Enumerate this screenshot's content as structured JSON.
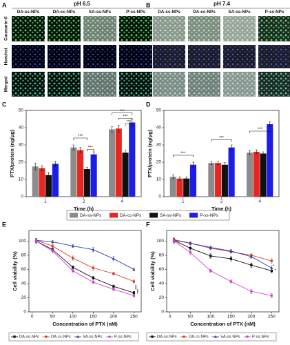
{
  "figure": {
    "panel_a": {
      "label": "A",
      "title": "pH 6.5",
      "columns": [
        "DA-ss-NPs",
        "DA-cc-NPs",
        "SA-ss-NPs",
        "P-ss-NPs"
      ],
      "rows": [
        "Coumarin-6",
        "Hoechst",
        "Merged"
      ]
    },
    "panel_b": {
      "label": "B",
      "title": "pH 7.4",
      "columns": [
        "DA-ss-NPs",
        "DA-cc-NPs",
        "SA-ss-NPs",
        "P-ss-NPs"
      ]
    }
  },
  "chart_data": [
    {
      "type": "bar",
      "label": "C",
      "xlabel": "Time (h)",
      "ylabel": "PTX/protein (ng/μg)",
      "categories": [
        "1",
        "2",
        "4"
      ],
      "ylim": [
        0,
        50
      ],
      "yticks": [
        0,
        10,
        20,
        30,
        40,
        50
      ],
      "series": [
        {
          "name": "DA-ss-NPs",
          "color": "#8c8c8c",
          "values": [
            17.5,
            28.5,
            39
          ],
          "errors": [
            2,
            1.5,
            1.5
          ]
        },
        {
          "name": "DA-cc-NPs",
          "color": "#e8261f",
          "values": [
            16.5,
            27,
            39.5
          ],
          "errors": [
            1.5,
            1.5,
            2
          ]
        },
        {
          "name": "SA-ss-NPs",
          "color": "#111111",
          "values": [
            12.5,
            16,
            25.5
          ],
          "errors": [
            1.5,
            1,
            1.5
          ]
        },
        {
          "name": "P-ss-NPs",
          "color": "#1d1de8",
          "values": [
            19,
            24.5,
            43
          ],
          "errors": [
            1.5,
            1.5,
            2
          ]
        }
      ],
      "annotations": [
        "***",
        "***",
        "***",
        "***",
        "***"
      ]
    },
    {
      "type": "bar",
      "label": "D",
      "xlabel": "Time (h)",
      "ylabel": "PTX/protein (ng/μg)",
      "categories": [
        "1",
        "2",
        "4"
      ],
      "ylim": [
        0,
        50
      ],
      "yticks": [
        0,
        10,
        20,
        30,
        40,
        50
      ],
      "series": [
        {
          "color": "#8c8c8c",
          "values": [
            11.5,
            19.5,
            25.5
          ],
          "errors": [
            1.2,
            1,
            1.2
          ]
        },
        {
          "color": "#e8261f",
          "values": [
            10.5,
            19.5,
            26
          ],
          "errors": [
            1,
            1,
            1.2
          ]
        },
        {
          "color": "#111111",
          "values": [
            10.5,
            18.5,
            25
          ],
          "errors": [
            1,
            1.2,
            1
          ]
        },
        {
          "color": "#1d1de8",
          "values": [
            18.5,
            28.5,
            42
          ],
          "errors": [
            1.5,
            1.5,
            1.5
          ]
        }
      ],
      "annotations": [
        "***",
        "***",
        "***"
      ]
    },
    {
      "type": "line",
      "label": "E",
      "xlabel": "Concentration of PTX (nM)",
      "ylabel": "Cell viability (%)",
      "x": [
        10,
        50,
        100,
        150,
        200,
        250
      ],
      "xlim": [
        -8,
        268
      ],
      "xticks": [
        0,
        50,
        100,
        150,
        200,
        250
      ],
      "ylim": [
        0,
        115
      ],
      "yticks": [
        0,
        20,
        40,
        60,
        80,
        100
      ],
      "series": [
        {
          "name": "DA-ss-NPs",
          "color": "#111111",
          "marker": "square",
          "values": [
            100,
            88,
            63,
            48,
            36,
            27
          ],
          "errors": [
            3,
            2,
            2,
            2,
            2,
            2
          ]
        },
        {
          "name": "DA-cc-NPs",
          "color": "#d93a2b",
          "marker": "circle",
          "values": [
            101,
            93,
            76,
            62,
            54,
            43
          ],
          "errors": [
            3,
            2,
            3,
            3,
            2,
            2
          ]
        },
        {
          "name": "SA-ss-NPs",
          "color": "#2b3bb0",
          "marker": "triangle",
          "values": [
            101,
            99,
            93,
            88,
            75,
            60
          ],
          "errors": [
            3,
            2,
            2,
            3,
            3,
            2
          ]
        },
        {
          "name": "P-ss-NPs",
          "color": "#d23fd6",
          "marker": "circle",
          "values": [
            100,
            86,
            58,
            42,
            32,
            23
          ],
          "errors": [
            3,
            2,
            2,
            2,
            2,
            2
          ]
        }
      ],
      "annotations": [
        "***",
        "***"
      ]
    },
    {
      "type": "line",
      "label": "F",
      "xlabel": "Concentration of PTX (nM)",
      "ylabel": "Cell viability (%)",
      "x": [
        10,
        50,
        100,
        150,
        200,
        250
      ],
      "xlim": [
        -8,
        268
      ],
      "xticks": [
        0,
        50,
        100,
        150,
        200,
        250
      ],
      "ylim": [
        0,
        115
      ],
      "yticks": [
        0,
        20,
        40,
        60,
        80,
        100
      ],
      "series": [
        {
          "name": "DA-ss-NPs",
          "color": "#111111",
          "marker": "square",
          "values": [
            101,
            90,
            79,
            75,
            66,
            58
          ],
          "errors": [
            3,
            3,
            3,
            3,
            3,
            3
          ]
        },
        {
          "name": "DA-cc-NPs",
          "color": "#d93a2b",
          "marker": "circle",
          "values": [
            102,
            97,
            90,
            85,
            80,
            72
          ],
          "errors": [
            3,
            2,
            2,
            2,
            2,
            3
          ]
        },
        {
          "name": "SA-ss-NPs",
          "color": "#2b3bb0",
          "marker": "triangle",
          "values": [
            101,
            97,
            91,
            86,
            78,
            62
          ],
          "errors": [
            3,
            2,
            2,
            2,
            2,
            3
          ]
        },
        {
          "name": "P-ss-NPs",
          "color": "#d23fd6",
          "marker": "circle",
          "values": [
            100,
            84,
            58,
            43,
            29,
            23
          ],
          "errors": [
            3,
            3,
            2,
            2,
            3,
            3
          ]
        }
      ],
      "annotations": [
        "*",
        "*"
      ]
    }
  ]
}
